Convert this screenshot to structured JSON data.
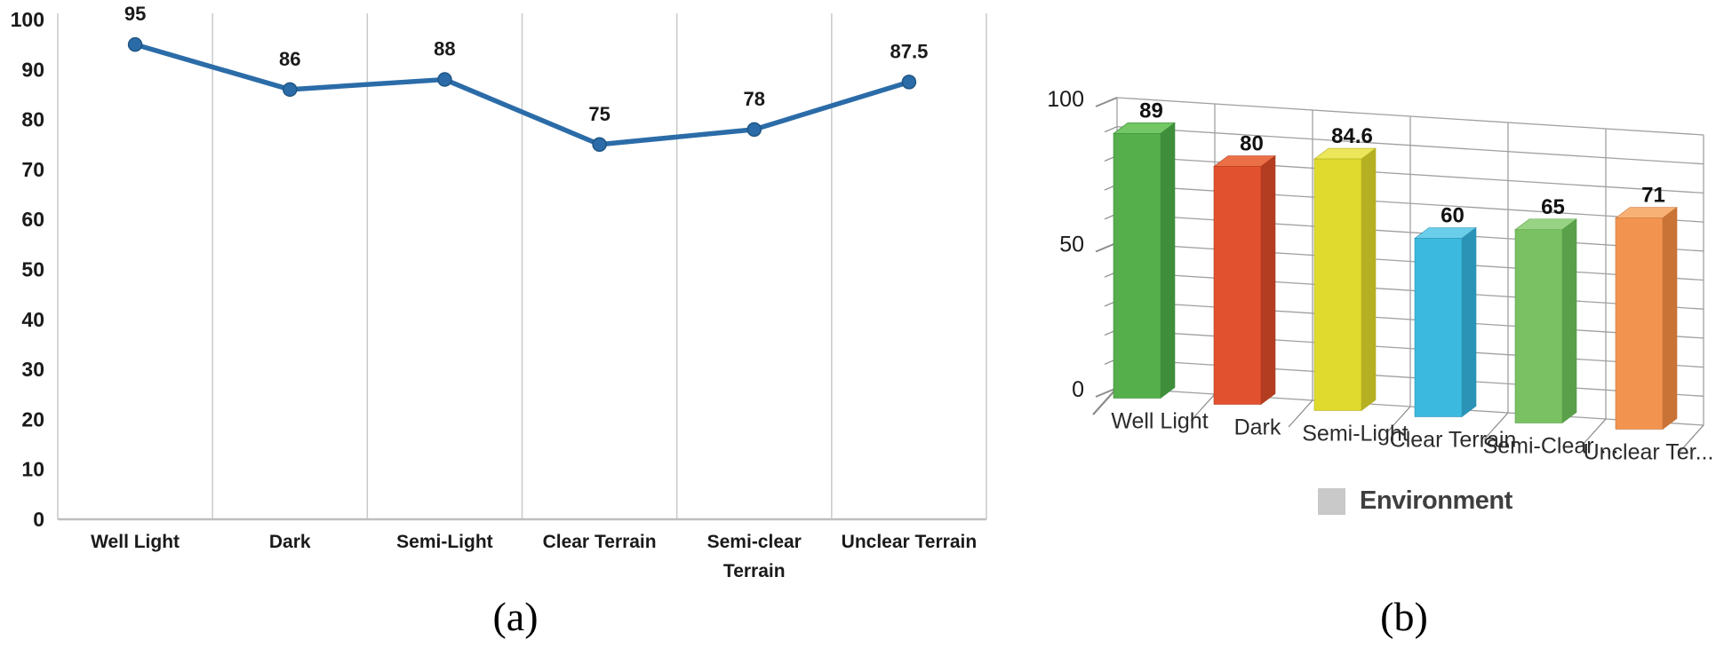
{
  "figure": {
    "caption_a": "(a)",
    "caption_b": "(b)"
  },
  "chart_data": [
    {
      "panel": "a",
      "type": "line",
      "title": "",
      "categories": [
        "Well Light",
        "Dark",
        "Semi-Light",
        "Clear Terrain",
        "Semi-clear Terrain",
        "Unclear Terrain"
      ],
      "categories_wrapped": [
        [
          "Well Light"
        ],
        [
          "Dark"
        ],
        [
          "Semi-Light"
        ],
        [
          "Clear Terrain"
        ],
        [
          "Semi-clear",
          "Terrain"
        ],
        [
          "Unclear Terrain"
        ]
      ],
      "values": [
        95,
        86,
        88,
        75,
        78,
        87.5
      ],
      "data_labels": [
        "95",
        "86",
        "88",
        "75",
        "78",
        "87.5"
      ],
      "yticks": [
        0,
        10,
        20,
        30,
        40,
        50,
        60,
        70,
        80,
        90,
        100
      ],
      "ylim": [
        0,
        100
      ],
      "grid": "vertical-only",
      "legend_position": "none",
      "line_color": "#2B6CA8",
      "marker_color": "#2B6CA8",
      "marker_edge_color": "#1F5585",
      "gridline_color": "#C9C9C9",
      "axis_line_color": "#BFBFBF",
      "label_color": "#1A1A1A"
    },
    {
      "panel": "b",
      "type": "bar",
      "style": "3d",
      "title": "",
      "categories": [
        "Well Light",
        "Dark",
        "Semi-Light",
        "Clear Terrain",
        "Semi-Clear ...",
        "Unclear Ter..."
      ],
      "values": [
        89,
        80,
        84.6,
        60,
        65,
        71
      ],
      "data_labels": [
        "89",
        "80",
        "84.6",
        "60",
        "65",
        "71"
      ],
      "yticks": [
        0,
        50,
        100
      ],
      "ytick_labels": [
        "0",
        "50",
        "100"
      ],
      "ytick_minor_step": 10,
      "ylim": [
        0,
        100
      ],
      "grid": "on",
      "legend": {
        "label": "Environment",
        "swatch_color": "#C9C9C9",
        "position": "bottom"
      },
      "bar_colors": [
        {
          "front": "#55B04C",
          "side": "#3E8E3B",
          "top": "#73C765"
        },
        {
          "front": "#E2512F",
          "side": "#B23D20",
          "top": "#EC7047"
        },
        {
          "front": "#E0DA2E",
          "side": "#B5B022",
          "top": "#ECE75A"
        },
        {
          "front": "#3CB9DE",
          "side": "#2B93B5",
          "top": "#6ACDE9"
        },
        {
          "front": "#79C163",
          "side": "#5A9F49",
          "top": "#97D382"
        },
        {
          "front": "#F29450",
          "side": "#C97336",
          "top": "#F8B175"
        }
      ],
      "gridline_color": "#A0A0A0",
      "tick_color": "#8C8C8C",
      "value_label_color": "#111111",
      "category_label_color": "#2B2B2B"
    }
  ]
}
